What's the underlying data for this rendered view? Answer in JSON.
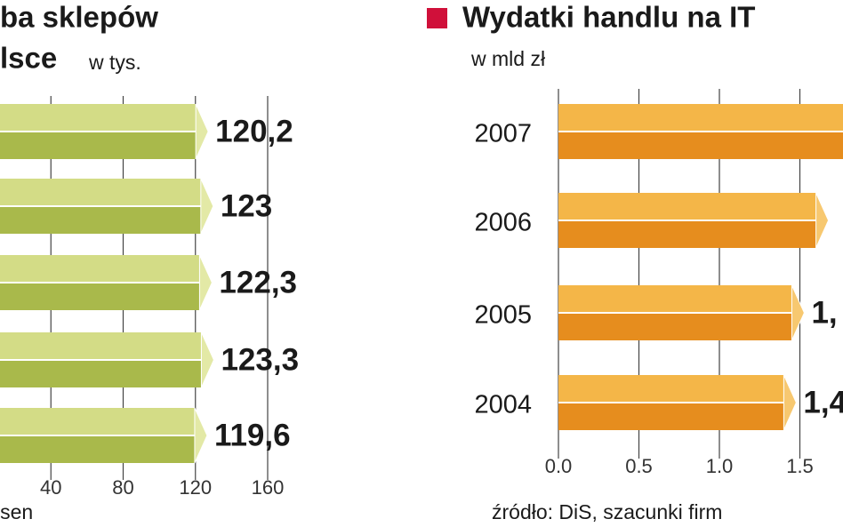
{
  "chart_data": [
    {
      "type": "hbar",
      "title": [
        "ba sklepów",
        "lsce"
      ],
      "subtitle": "w tys.",
      "source": "lsen",
      "categories": [
        null,
        null,
        null,
        null,
        null
      ],
      "values": [
        120.2,
        123,
        122.3,
        123.3,
        119.6
      ],
      "value_labels": [
        "120,2",
        "123",
        "122,3",
        "123,3",
        "119,6"
      ],
      "color": "#b3c25a",
      "xlim": [
        0,
        160
      ],
      "xticks": [
        40,
        80,
        120,
        160
      ],
      "grid": true
    },
    {
      "type": "hbar",
      "title": "Wydatki handlu na IT",
      "subtitle": "w mld zł",
      "source": "źródło: DiS, szacunki firm",
      "categories": [
        "2007",
        "2006",
        "2005",
        "2004"
      ],
      "values": [
        1.9,
        1.6,
        1.45,
        1.4
      ],
      "value_labels": [
        null,
        null,
        "1,",
        "1,4"
      ],
      "color": "#eb9a2a",
      "marker_color": "#d0103a",
      "xlim": [
        0,
        2
      ],
      "xticks": [
        {
          "value": 0,
          "label": "0.0"
        },
        0.5,
        {
          "value": 1,
          "label": "1.0"
        },
        1.5
      ],
      "grid": true
    }
  ]
}
